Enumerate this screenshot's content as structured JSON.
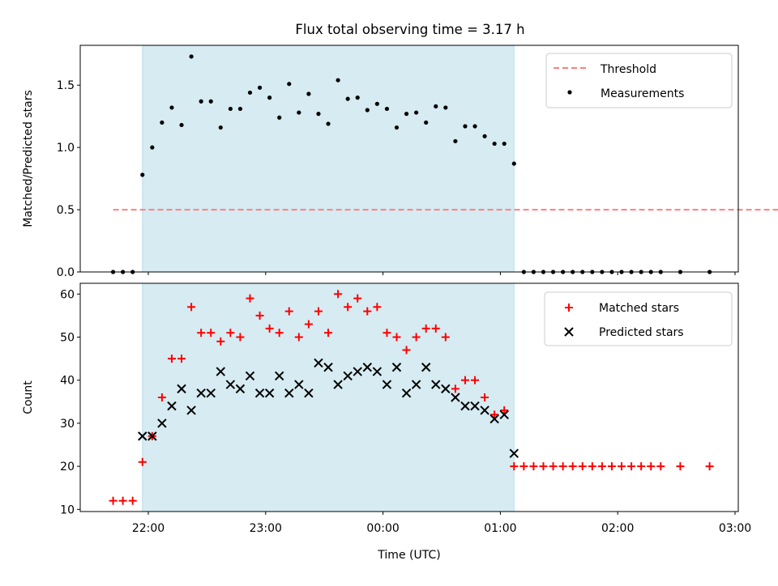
{
  "title": "Flux total observing time = 3.17 h",
  "colors": {
    "shade": "#add8e6",
    "threshold": "#ff7f7f",
    "matched": "#ff0000",
    "predicted": "#000000",
    "measure": "#000000"
  },
  "chart_data": [
    {
      "type": "scatter",
      "title": "Flux total observing time = 3.17 h",
      "xlabel": "",
      "ylabel": "Matched/Predicted stars",
      "x_ticks": [
        "22:00",
        "23:00",
        "00:00",
        "01:00",
        "02:00",
        "03:00"
      ],
      "y_ticks": [
        "0.0",
        "0.5",
        "1.0",
        "1.5"
      ],
      "ylim": [
        0,
        1.82
      ],
      "shaded_span": [
        "21:57",
        "01:07"
      ],
      "legend": {
        "placement": "top-right",
        "entries": [
          "Threshold",
          "Measurements"
        ]
      },
      "threshold": {
        "name": "Threshold",
        "value": 0.5,
        "x_range": [
          "21:42",
          "04:47"
        ]
      },
      "series": [
        {
          "name": "Measurements",
          "points": [
            [
              "21:42",
              0
            ],
            [
              "21:47",
              0
            ],
            [
              "21:52",
              0
            ],
            [
              "21:57",
              0.78
            ],
            [
              "22:02",
              1.0
            ],
            [
              "22:07",
              1.2
            ],
            [
              "22:12",
              1.32
            ],
            [
              "22:17",
              1.18
            ],
            [
              "22:22",
              1.73
            ],
            [
              "22:27",
              1.37
            ],
            [
              "22:32",
              1.37
            ],
            [
              "22:37",
              1.16
            ],
            [
              "22:42",
              1.31
            ],
            [
              "22:47",
              1.31
            ],
            [
              "22:52",
              1.44
            ],
            [
              "22:57",
              1.48
            ],
            [
              "23:02",
              1.4
            ],
            [
              "23:07",
              1.24
            ],
            [
              "23:12",
              1.51
            ],
            [
              "23:17",
              1.28
            ],
            [
              "23:22",
              1.43
            ],
            [
              "23:27",
              1.27
            ],
            [
              "23:32",
              1.19
            ],
            [
              "23:37",
              1.54
            ],
            [
              "23:42",
              1.39
            ],
            [
              "23:47",
              1.4
            ],
            [
              "23:52",
              1.3
            ],
            [
              "23:57",
              1.35
            ],
            [
              "00:02",
              1.31
            ],
            [
              "00:07",
              1.16
            ],
            [
              "00:12",
              1.27
            ],
            [
              "00:17",
              1.28
            ],
            [
              "00:22",
              1.2
            ],
            [
              "00:27",
              1.33
            ],
            [
              "00:32",
              1.32
            ],
            [
              "00:37",
              1.05
            ],
            [
              "00:42",
              1.17
            ],
            [
              "00:47",
              1.17
            ],
            [
              "00:52",
              1.09
            ],
            [
              "00:57",
              1.03
            ],
            [
              "01:02",
              1.03
            ],
            [
              "01:07",
              0.87
            ],
            [
              "01:12",
              0
            ],
            [
              "01:17",
              0
            ],
            [
              "01:22",
              0
            ],
            [
              "01:27",
              0
            ],
            [
              "01:32",
              0
            ],
            [
              "01:37",
              0
            ],
            [
              "01:42",
              0
            ],
            [
              "01:47",
              0
            ],
            [
              "01:52",
              0
            ],
            [
              "01:57",
              0
            ],
            [
              "02:02",
              0
            ],
            [
              "02:07",
              0
            ],
            [
              "02:12",
              0
            ],
            [
              "02:17",
              0
            ],
            [
              "02:22",
              0
            ],
            [
              "02:32",
              0
            ],
            [
              "02:47",
              0
            ]
          ]
        }
      ]
    },
    {
      "type": "scatter",
      "title": "",
      "xlabel": "Time (UTC)",
      "ylabel": "Count",
      "x_ticks": [
        "22:00",
        "23:00",
        "00:00",
        "01:00",
        "02:00",
        "03:00"
      ],
      "y_ticks": [
        "10",
        "20",
        "30",
        "40",
        "50",
        "60"
      ],
      "ylim": [
        9.5,
        62.5
      ],
      "shaded_span": [
        "21:57",
        "01:07"
      ],
      "legend": {
        "placement": "top-right",
        "entries": [
          "Matched stars",
          "Predicted stars"
        ]
      },
      "series": [
        {
          "name": "Matched stars",
          "points": [
            [
              "21:42",
              12
            ],
            [
              "21:47",
              12
            ],
            [
              "21:52",
              12
            ],
            [
              "21:57",
              21
            ],
            [
              "22:02",
              27
            ],
            [
              "22:07",
              36
            ],
            [
              "22:12",
              45
            ],
            [
              "22:17",
              45
            ],
            [
              "22:22",
              57
            ],
            [
              "22:27",
              51
            ],
            [
              "22:32",
              51
            ],
            [
              "22:37",
              49
            ],
            [
              "22:42",
              51
            ],
            [
              "22:47",
              50
            ],
            [
              "22:52",
              59
            ],
            [
              "22:57",
              55
            ],
            [
              "23:02",
              52
            ],
            [
              "23:07",
              51
            ],
            [
              "23:12",
              56
            ],
            [
              "23:17",
              50
            ],
            [
              "23:22",
              53
            ],
            [
              "23:27",
              56
            ],
            [
              "23:32",
              51
            ],
            [
              "23:37",
              60
            ],
            [
              "23:42",
              57
            ],
            [
              "23:47",
              59
            ],
            [
              "23:52",
              56
            ],
            [
              "23:57",
              57
            ],
            [
              "00:02",
              51
            ],
            [
              "00:07",
              50
            ],
            [
              "00:12",
              47
            ],
            [
              "00:17",
              50
            ],
            [
              "00:22",
              52
            ],
            [
              "00:27",
              52
            ],
            [
              "00:32",
              50
            ],
            [
              "00:37",
              38
            ],
            [
              "00:42",
              40
            ],
            [
              "00:47",
              40
            ],
            [
              "00:52",
              36
            ],
            [
              "00:57",
              32
            ],
            [
              "01:02",
              33
            ],
            [
              "01:07",
              20
            ],
            [
              "01:12",
              20
            ],
            [
              "01:17",
              20
            ],
            [
              "01:22",
              20
            ],
            [
              "01:27",
              20
            ],
            [
              "01:32",
              20
            ],
            [
              "01:37",
              20
            ],
            [
              "01:42",
              20
            ],
            [
              "01:47",
              20
            ],
            [
              "01:52",
              20
            ],
            [
              "01:57",
              20
            ],
            [
              "02:02",
              20
            ],
            [
              "02:07",
              20
            ],
            [
              "02:12",
              20
            ],
            [
              "02:17",
              20
            ],
            [
              "02:22",
              20
            ],
            [
              "02:32",
              20
            ],
            [
              "02:47",
              20
            ]
          ]
        },
        {
          "name": "Predicted stars",
          "points": [
            [
              "21:57",
              27
            ],
            [
              "22:02",
              27
            ],
            [
              "22:07",
              30
            ],
            [
              "22:12",
              34
            ],
            [
              "22:17",
              38
            ],
            [
              "22:22",
              33
            ],
            [
              "22:27",
              37
            ],
            [
              "22:32",
              37
            ],
            [
              "22:37",
              42
            ],
            [
              "22:42",
              39
            ],
            [
              "22:47",
              38
            ],
            [
              "22:52",
              41
            ],
            [
              "22:57",
              37
            ],
            [
              "23:02",
              37
            ],
            [
              "23:07",
              41
            ],
            [
              "23:12",
              37
            ],
            [
              "23:17",
              39
            ],
            [
              "23:22",
              37
            ],
            [
              "23:27",
              44
            ],
            [
              "23:32",
              43
            ],
            [
              "23:37",
              39
            ],
            [
              "23:42",
              41
            ],
            [
              "23:47",
              42
            ],
            [
              "23:52",
              43
            ],
            [
              "23:57",
              42
            ],
            [
              "00:02",
              39
            ],
            [
              "00:07",
              43
            ],
            [
              "00:12",
              37
            ],
            [
              "00:17",
              39
            ],
            [
              "00:22",
              43
            ],
            [
              "00:27",
              39
            ],
            [
              "00:32",
              38
            ],
            [
              "00:37",
              36
            ],
            [
              "00:42",
              34
            ],
            [
              "00:47",
              34
            ],
            [
              "00:52",
              33
            ],
            [
              "00:57",
              31
            ],
            [
              "01:02",
              32
            ],
            [
              "01:07",
              23
            ]
          ]
        }
      ]
    }
  ]
}
